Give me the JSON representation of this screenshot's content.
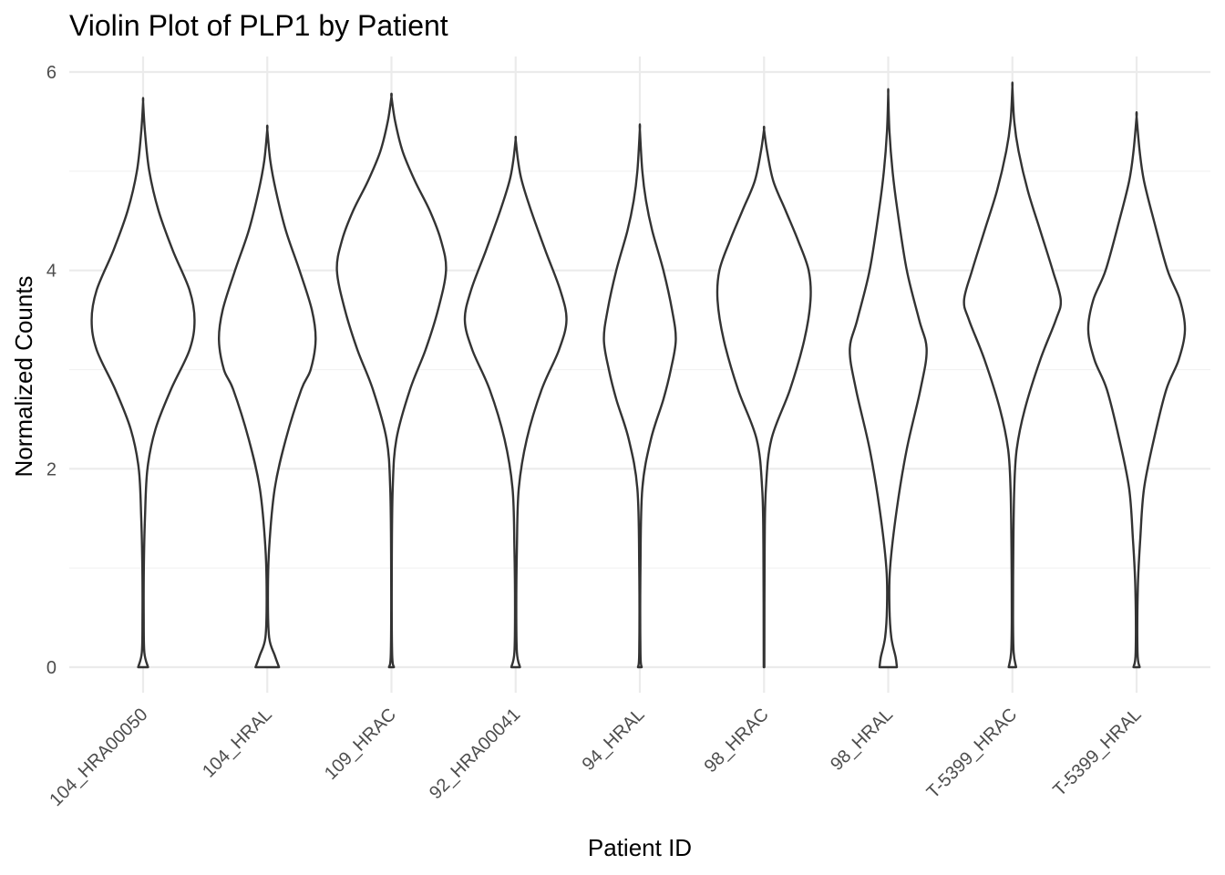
{
  "chart_data": {
    "type": "violin",
    "title": "Violin Plot of PLP1 by Patient",
    "xlabel": "Patient ID",
    "ylabel": "Normalized Counts",
    "ylim": [
      -0.25,
      6.15
    ],
    "yticks": [
      0,
      2,
      4,
      6
    ],
    "grid": true,
    "categories": [
      "104_HRA00050",
      "104_HRAL",
      "109_HRAC",
      "92_HRA00041",
      "94_HRAL",
      "98_HRAC",
      "98_HRAL",
      "T-5399_HRAC",
      "T-5399_HRAL"
    ],
    "violins": [
      {
        "category": "104_HRA00050",
        "max": 5.7,
        "profile": [
          [
            0,
            0.08
          ],
          [
            0.15,
            0.02
          ],
          [
            0.5,
            0.01
          ],
          [
            1.0,
            0.012
          ],
          [
            1.5,
            0.03
          ],
          [
            2.0,
            0.07
          ],
          [
            2.4,
            0.2
          ],
          [
            2.8,
            0.45
          ],
          [
            3.2,
            0.75
          ],
          [
            3.5,
            0.83
          ],
          [
            3.8,
            0.75
          ],
          [
            4.2,
            0.48
          ],
          [
            4.6,
            0.25
          ],
          [
            5.0,
            0.1
          ],
          [
            5.4,
            0.03
          ],
          [
            5.7,
            0
          ]
        ]
      },
      {
        "category": "104_HRAL",
        "max": 5.42,
        "profile": [
          [
            0,
            0.19
          ],
          [
            0.12,
            0.12
          ],
          [
            0.3,
            0.03
          ],
          [
            0.7,
            0.01
          ],
          [
            1.2,
            0.03
          ],
          [
            1.8,
            0.12
          ],
          [
            2.3,
            0.3
          ],
          [
            2.8,
            0.55
          ],
          [
            3.0,
            0.7
          ],
          [
            3.3,
            0.78
          ],
          [
            3.6,
            0.72
          ],
          [
            4.0,
            0.52
          ],
          [
            4.4,
            0.3
          ],
          [
            4.8,
            0.14
          ],
          [
            5.1,
            0.05
          ],
          [
            5.42,
            0
          ]
        ]
      },
      {
        "category": "109_HRAC",
        "max": 5.75,
        "profile": [
          [
            0,
            0.04
          ],
          [
            0.15,
            0.01
          ],
          [
            1.0,
            0.005
          ],
          [
            1.8,
            0.02
          ],
          [
            2.3,
            0.08
          ],
          [
            2.8,
            0.3
          ],
          [
            3.2,
            0.55
          ],
          [
            3.6,
            0.75
          ],
          [
            4.0,
            0.88
          ],
          [
            4.3,
            0.8
          ],
          [
            4.6,
            0.62
          ],
          [
            4.9,
            0.38
          ],
          [
            5.2,
            0.18
          ],
          [
            5.5,
            0.06
          ],
          [
            5.75,
            0
          ]
        ]
      },
      {
        "category": "92_HRA00041",
        "max": 5.32,
        "profile": [
          [
            0,
            0.07
          ],
          [
            0.15,
            0.02
          ],
          [
            0.6,
            0.01
          ],
          [
            1.2,
            0.02
          ],
          [
            1.8,
            0.05
          ],
          [
            2.3,
            0.18
          ],
          [
            2.8,
            0.42
          ],
          [
            3.2,
            0.7
          ],
          [
            3.5,
            0.82
          ],
          [
            3.8,
            0.72
          ],
          [
            4.2,
            0.48
          ],
          [
            4.6,
            0.25
          ],
          [
            4.9,
            0.1
          ],
          [
            5.1,
            0.04
          ],
          [
            5.32,
            0
          ]
        ]
      },
      {
        "category": "94_HRAL",
        "max": 5.42,
        "profile": [
          [
            0,
            0.03
          ],
          [
            0.15,
            0.01
          ],
          [
            1.0,
            0.01
          ],
          [
            1.8,
            0.04
          ],
          [
            2.3,
            0.18
          ],
          [
            2.7,
            0.38
          ],
          [
            3.0,
            0.5
          ],
          [
            3.3,
            0.58
          ],
          [
            3.6,
            0.52
          ],
          [
            4.0,
            0.38
          ],
          [
            4.4,
            0.2
          ],
          [
            4.7,
            0.1
          ],
          [
            5.0,
            0.04
          ],
          [
            5.42,
            0
          ]
        ]
      },
      {
        "category": "98_HRAC",
        "max": 5.42,
        "profile": [
          [
            0,
            0.005
          ],
          [
            1.2,
            0.01
          ],
          [
            1.8,
            0.03
          ],
          [
            2.3,
            0.12
          ],
          [
            2.8,
            0.42
          ],
          [
            3.3,
            0.65
          ],
          [
            3.7,
            0.75
          ],
          [
            4.0,
            0.72
          ],
          [
            4.3,
            0.55
          ],
          [
            4.6,
            0.35
          ],
          [
            4.9,
            0.15
          ],
          [
            5.2,
            0.05
          ],
          [
            5.42,
            0
          ]
        ]
      },
      {
        "category": "98_HRAL",
        "max": 5.78,
        "profile": [
          [
            0,
            0.14
          ],
          [
            0.1,
            0.12
          ],
          [
            0.3,
            0.05
          ],
          [
            0.6,
            0.02
          ],
          [
            1.0,
            0.03
          ],
          [
            1.6,
            0.14
          ],
          [
            2.2,
            0.3
          ],
          [
            2.8,
            0.52
          ],
          [
            3.2,
            0.62
          ],
          [
            3.5,
            0.5
          ],
          [
            4.0,
            0.3
          ],
          [
            4.6,
            0.15
          ],
          [
            5.0,
            0.07
          ],
          [
            5.4,
            0.02
          ],
          [
            5.78,
            0
          ]
        ]
      },
      {
        "category": "T-5399_HRAC",
        "max": 5.85,
        "profile": [
          [
            0,
            0.06
          ],
          [
            0.15,
            0.02
          ],
          [
            0.5,
            0.01
          ],
          [
            1.2,
            0.015
          ],
          [
            1.8,
            0.03
          ],
          [
            2.2,
            0.07
          ],
          [
            2.6,
            0.2
          ],
          [
            3.1,
            0.45
          ],
          [
            3.5,
            0.7
          ],
          [
            3.7,
            0.78
          ],
          [
            4.0,
            0.65
          ],
          [
            4.4,
            0.45
          ],
          [
            4.8,
            0.25
          ],
          [
            5.2,
            0.1
          ],
          [
            5.5,
            0.03
          ],
          [
            5.85,
            0
          ]
        ]
      },
      {
        "category": "T-5399_HRAL",
        "max": 5.55,
        "profile": [
          [
            0,
            0.05
          ],
          [
            0.15,
            0.015
          ],
          [
            0.8,
            0.02
          ],
          [
            1.3,
            0.06
          ],
          [
            1.8,
            0.12
          ],
          [
            2.3,
            0.28
          ],
          [
            2.8,
            0.48
          ],
          [
            3.1,
            0.68
          ],
          [
            3.4,
            0.78
          ],
          [
            3.7,
            0.7
          ],
          [
            4.0,
            0.5
          ],
          [
            4.5,
            0.28
          ],
          [
            4.9,
            0.12
          ],
          [
            5.2,
            0.05
          ],
          [
            5.55,
            0
          ]
        ]
      }
    ]
  }
}
